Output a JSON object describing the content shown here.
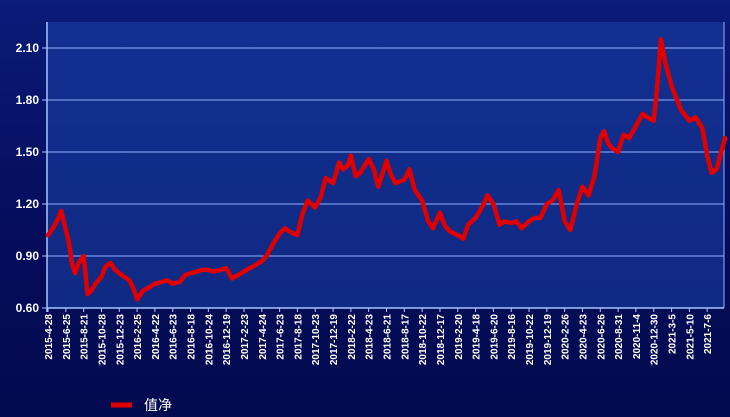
{
  "chart_data": {
    "type": "line",
    "title": "",
    "xlabel": "",
    "ylabel": "",
    "ylim": [
      0.6,
      2.25
    ],
    "yticks": [
      "0.60",
      "0.90",
      "1.20",
      "1.50",
      "1.80",
      "2.10"
    ],
    "ytick_values": [
      0.6,
      0.9,
      1.2,
      1.5,
      1.8,
      2.1
    ],
    "xtick_labels": [
      "2015-4-28",
      "2015-6-25",
      "2015-8-21",
      "2015-10-28",
      "2015-12-23",
      "2016-2-25",
      "2016-4-22",
      "2016-6-23",
      "2016-8-18",
      "2016-10-24",
      "2016-12-19",
      "2017-2-23",
      "2017-4-24",
      "2017-6-23",
      "2017-8-18",
      "2017-10-23",
      "2017-12-19",
      "2018-2-22",
      "2018-4-23",
      "2018-6-21",
      "2018-8-17",
      "2018-10-22",
      "2018-12-17",
      "2019-2-20",
      "2019-4-18",
      "2019-6-20",
      "2019-8-16",
      "2019-10-22",
      "2019-12-19",
      "2020-2-26",
      "2020-4-23",
      "2020-6-26",
      "2020-8-31",
      "2020-11-4",
      "2020-12-30",
      "2021-3-5",
      "2021-5-10",
      "2021-7-6"
    ],
    "grid": true,
    "legend_position": "bottom-left",
    "series": [
      {
        "name": "值净",
        "color": "#e00000",
        "x": [
          "2015-4-28",
          "2015-5-10",
          "2015-5-20",
          "2015-6-1",
          "2015-6-10",
          "2015-6-25",
          "2015-7-5",
          "2015-7-15",
          "2015-7-25",
          "2015-8-5",
          "2015-8-21",
          "2015-9-5",
          "2015-9-20",
          "2015-10-5",
          "2015-10-28",
          "2015-11-10",
          "2015-11-25",
          "2015-12-10",
          "2015-12-23",
          "2016-1-10",
          "2016-1-28",
          "2016-2-10",
          "2016-2-25",
          "2016-3-15",
          "2016-4-5",
          "2016-4-22",
          "2016-5-15",
          "2016-6-5",
          "2016-6-23",
          "2016-7-15",
          "2016-8-1",
          "2016-8-18",
          "2016-9-10",
          "2016-9-30",
          "2016-10-24",
          "2016-11-10",
          "2016-12-1",
          "2016-12-19",
          "2017-1-10",
          "2017-2-1",
          "2017-2-23",
          "2017-3-15",
          "2017-4-5",
          "2017-4-24",
          "2017-5-10",
          "2017-6-1",
          "2017-6-23",
          "2017-7-10",
          "2017-7-25",
          "2017-8-18",
          "2017-9-5",
          "2017-9-25",
          "2017-10-23",
          "2017-11-10",
          "2017-11-25",
          "2017-12-19",
          "2018-1-10",
          "2018-1-25",
          "2018-2-10",
          "2018-2-22",
          "2018-3-10",
          "2018-3-25",
          "2018-4-23",
          "2018-5-10",
          "2018-5-25",
          "2018-6-21",
          "2018-7-5",
          "2018-7-20",
          "2018-8-17",
          "2018-9-5",
          "2018-9-25",
          "2018-10-22",
          "2018-11-10",
          "2018-11-25",
          "2018-12-17",
          "2019-1-5",
          "2019-1-25",
          "2019-2-20",
          "2019-3-10",
          "2019-3-25",
          "2019-4-18",
          "2019-5-10",
          "2019-5-30",
          "2019-6-20",
          "2019-7-10",
          "2019-7-25",
          "2019-8-16",
          "2019-9-5",
          "2019-9-25",
          "2019-10-22",
          "2019-11-10",
          "2019-11-28",
          "2019-12-19",
          "2020-1-10",
          "2020-2-3",
          "2020-2-26",
          "2020-3-15",
          "2020-4-5",
          "2020-4-23",
          "2020-5-15",
          "2020-6-5",
          "2020-6-26",
          "2020-7-10",
          "2020-7-25",
          "2020-8-10",
          "2020-8-31",
          "2020-9-20",
          "2020-10-10",
          "2020-11-4",
          "2020-11-25",
          "2020-12-10",
          "2020-12-30",
          "2021-1-10",
          "2021-1-25",
          "2021-2-10",
          "2021-3-5",
          "2021-3-25",
          "2021-4-10",
          "2021-5-10",
          "2021-5-30",
          "2021-6-20",
          "2021-7-6",
          "2021-7-20",
          "2021-8-5",
          "2021-8-20",
          "2021-9-1"
        ],
        "values": [
          1.02,
          1.05,
          1.08,
          1.12,
          1.16,
          1.05,
          0.98,
          0.85,
          0.8,
          0.86,
          0.9,
          0.68,
          0.7,
          0.74,
          0.78,
          0.84,
          0.86,
          0.82,
          0.8,
          0.78,
          0.76,
          0.72,
          0.65,
          0.7,
          0.72,
          0.74,
          0.75,
          0.76,
          0.74,
          0.75,
          0.79,
          0.8,
          0.81,
          0.82,
          0.82,
          0.81,
          0.82,
          0.83,
          0.77,
          0.79,
          0.81,
          0.83,
          0.85,
          0.87,
          0.9,
          0.97,
          1.03,
          1.06,
          1.04,
          1.02,
          1.14,
          1.22,
          1.18,
          1.24,
          1.35,
          1.32,
          1.44,
          1.4,
          1.42,
          1.48,
          1.36,
          1.38,
          1.46,
          1.4,
          1.3,
          1.45,
          1.37,
          1.32,
          1.34,
          1.4,
          1.28,
          1.22,
          1.1,
          1.06,
          1.15,
          1.07,
          1.04,
          1.02,
          1.0,
          1.08,
          1.12,
          1.18,
          1.25,
          1.2,
          1.08,
          1.1,
          1.09,
          1.1,
          1.06,
          1.1,
          1.12,
          1.12,
          1.2,
          1.22,
          1.28,
          1.1,
          1.05,
          1.2,
          1.3,
          1.25,
          1.36,
          1.58,
          1.62,
          1.55,
          1.52,
          1.5,
          1.6,
          1.58,
          1.65,
          1.72,
          1.7,
          1.68,
          1.85,
          2.15,
          2.02,
          1.88,
          1.8,
          1.74,
          1.68,
          1.7,
          1.64,
          1.48,
          1.38,
          1.4,
          1.5,
          1.58
        ]
      }
    ]
  }
}
